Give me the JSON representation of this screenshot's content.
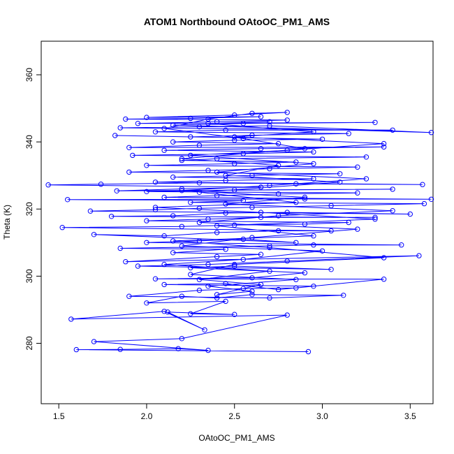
{
  "chart_data": {
    "type": "line",
    "title": "ATOM1 Northbound OAtoOC_PM1_AMS",
    "xlabel": "OAtoOC_PM1_AMS",
    "ylabel": "Theta (K)",
    "xlim": [
      1.4,
      3.63
    ],
    "ylim": [
      262,
      370
    ],
    "x_ticks": [
      1.5,
      2.0,
      2.5,
      3.0,
      3.5
    ],
    "x_tick_labels": [
      "1.5",
      "2.0",
      "2.5",
      "3.0",
      "3.5"
    ],
    "y_ticks": [
      280,
      300,
      320,
      340,
      360
    ],
    "y_tick_labels": [
      "280",
      "300",
      "320",
      "340",
      "360"
    ],
    "grid": false,
    "markers": "open-circle",
    "series": [
      {
        "color": "#0000ff",
        "points": [
          [
            2.92,
            277.5
          ],
          [
            1.6,
            278.1
          ],
          [
            1.85,
            278.2
          ],
          [
            2.18,
            278.4
          ],
          [
            2.35,
            277.9
          ],
          [
            1.7,
            280.5
          ],
          [
            2.2,
            281.4
          ],
          [
            2.8,
            288.4
          ],
          [
            1.57,
            287.2
          ],
          [
            2.1,
            289.5
          ],
          [
            2.33,
            284.0
          ],
          [
            2.12,
            289.3
          ],
          [
            2.5,
            288.6
          ],
          [
            2.25,
            288.8
          ],
          [
            2.45,
            292.5
          ],
          [
            2.0,
            292.0
          ],
          [
            2.2,
            294.0
          ],
          [
            2.4,
            293.5
          ],
          [
            2.6,
            294.5
          ],
          [
            3.12,
            294.3
          ],
          [
            2.7,
            293.5
          ],
          [
            1.9,
            294.0
          ],
          [
            2.3,
            295.8
          ],
          [
            2.55,
            296.3
          ],
          [
            2.85,
            296.5
          ],
          [
            2.95,
            297.0
          ],
          [
            2.1,
            297.5
          ],
          [
            2.45,
            297.8
          ],
          [
            2.75,
            296.0
          ],
          [
            3.35,
            299.1
          ],
          [
            2.05,
            299.2
          ],
          [
            2.6,
            299.5
          ],
          [
            2.9,
            301.0
          ],
          [
            2.25,
            302.5
          ],
          [
            2.5,
            303.0
          ],
          [
            3.05,
            302.0
          ],
          [
            1.95,
            303.0
          ],
          [
            2.35,
            303.5
          ],
          [
            2.8,
            304.5
          ],
          [
            3.55,
            306.1
          ],
          [
            1.88,
            304.3
          ],
          [
            2.4,
            305.8
          ],
          [
            2.65,
            306.5
          ],
          [
            2.15,
            307.0
          ],
          [
            2.45,
            308.0
          ],
          [
            1.85,
            308.3
          ],
          [
            2.7,
            309.0
          ],
          [
            2.95,
            309.3
          ],
          [
            3.45,
            309.3
          ],
          [
            2.0,
            310.0
          ],
          [
            2.3,
            310.5
          ],
          [
            2.55,
            311.0
          ],
          [
            2.85,
            310.0
          ],
          [
            1.7,
            312.4
          ],
          [
            2.1,
            312.0
          ],
          [
            2.4,
            313.0
          ],
          [
            2.75,
            313.5
          ],
          [
            3.05,
            313.5
          ],
          [
            1.52,
            314.5
          ],
          [
            2.2,
            314.8
          ],
          [
            2.5,
            315.2
          ],
          [
            2.9,
            315.5
          ],
          [
            3.15,
            316.0
          ],
          [
            2.0,
            316.5
          ],
          [
            2.35,
            317.0
          ],
          [
            2.65,
            317.5
          ],
          [
            3.3,
            317.5
          ],
          [
            1.8,
            317.8
          ],
          [
            2.15,
            318.0
          ],
          [
            2.45,
            318.8
          ],
          [
            2.8,
            319.0
          ],
          [
            3.5,
            318.5
          ],
          [
            1.68,
            319.4
          ],
          [
            2.05,
            319.8
          ],
          [
            2.3,
            320.2
          ],
          [
            2.6,
            320.5
          ],
          [
            3.05,
            321.0
          ],
          [
            3.58,
            321.6
          ],
          [
            2.25,
            322.0
          ],
          [
            2.55,
            322.5
          ],
          [
            1.55,
            322.8
          ],
          [
            2.9,
            323.0
          ],
          [
            3.62,
            322.9
          ],
          [
            2.1,
            323.5
          ],
          [
            2.4,
            324.0
          ],
          [
            2.75,
            324.5
          ],
          [
            3.2,
            324.8
          ],
          [
            2.0,
            325.2
          ],
          [
            2.5,
            325.7
          ],
          [
            3.4,
            325.9
          ],
          [
            1.83,
            325.4
          ],
          [
            2.2,
            326.0
          ],
          [
            2.65,
            326.5
          ],
          [
            1.44,
            327.2
          ],
          [
            1.74,
            327.4
          ],
          [
            2.3,
            327.8
          ],
          [
            2.85,
            327.5
          ],
          [
            3.57,
            327.3
          ],
          [
            2.05,
            328.0
          ],
          [
            2.45,
            328.5
          ],
          [
            2.95,
            329.0
          ],
          [
            2.15,
            329.5
          ],
          [
            2.6,
            330.0
          ],
          [
            3.1,
            330.5
          ],
          [
            1.9,
            331.0
          ],
          [
            2.35,
            331.5
          ],
          [
            2.7,
            332.0
          ],
          [
            3.2,
            332.5
          ],
          [
            2.0,
            333.0
          ],
          [
            2.5,
            333.5
          ],
          [
            2.85,
            334.0
          ],
          [
            2.2,
            334.5
          ],
          [
            2.4,
            335.0
          ],
          [
            3.25,
            335.5
          ],
          [
            1.92,
            336.0
          ],
          [
            2.55,
            336.5
          ],
          [
            2.95,
            337.0
          ],
          [
            2.1,
            337.5
          ],
          [
            2.65,
            338.0
          ],
          [
            3.35,
            338.5
          ],
          [
            1.9,
            338.3
          ],
          [
            2.3,
            339.0
          ],
          [
            2.75,
            339.5
          ],
          [
            2.15,
            340.0
          ],
          [
            2.5,
            340.5
          ],
          [
            3.0,
            340.8
          ],
          [
            1.82,
            341.9
          ],
          [
            2.25,
            341.5
          ],
          [
            2.6,
            342.0
          ],
          [
            3.15,
            342.5
          ],
          [
            2.05,
            343.0
          ],
          [
            2.45,
            343.5
          ],
          [
            3.4,
            343.5
          ],
          [
            1.85,
            344.2
          ],
          [
            2.3,
            344.5
          ],
          [
            2.7,
            344.8
          ],
          [
            3.62,
            342.8
          ],
          [
            2.15,
            345.0
          ],
          [
            2.55,
            345.5
          ],
          [
            3.3,
            345.8
          ],
          [
            1.95,
            345.5
          ],
          [
            2.4,
            346.0
          ],
          [
            2.8,
            346.5
          ],
          [
            1.88,
            346.8
          ],
          [
            2.25,
            347.0
          ],
          [
            2.65,
            347.5
          ],
          [
            2.0,
            347.3
          ],
          [
            2.5,
            348.0
          ],
          [
            2.8,
            348.8
          ],
          [
            2.6,
            348.5
          ],
          [
            2.35,
            346.8
          ],
          [
            2.1,
            344.0
          ],
          [
            2.55,
            341.0
          ],
          [
            2.9,
            338.0
          ],
          [
            2.2,
            335.0
          ],
          [
            2.75,
            333.0
          ],
          [
            2.45,
            330.0
          ],
          [
            3.1,
            328.0
          ],
          [
            2.3,
            325.0
          ],
          [
            2.85,
            322.0
          ],
          [
            2.05,
            320.5
          ],
          [
            2.65,
            319.0
          ],
          [
            3.3,
            317.0
          ],
          [
            2.4,
            315.0
          ],
          [
            2.95,
            312.0
          ],
          [
            2.15,
            310.5
          ],
          [
            2.7,
            308.5
          ],
          [
            3.35,
            305.5
          ],
          [
            2.5,
            303.5
          ],
          [
            2.25,
            300.5
          ],
          [
            2.85,
            299.0
          ],
          [
            2.35,
            297.0
          ],
          [
            2.6,
            295.5
          ],
          [
            2.4,
            294.5
          ],
          [
            2.65,
            297.5
          ],
          [
            2.3,
            299.0
          ],
          [
            2.7,
            301.5
          ],
          [
            2.1,
            303.5
          ],
          [
            2.55,
            305.0
          ],
          [
            3.0,
            307.5
          ],
          [
            2.2,
            309.0
          ],
          [
            2.6,
            311.5
          ],
          [
            3.2,
            314.0
          ],
          [
            2.3,
            316.0
          ],
          [
            2.75,
            318.0
          ],
          [
            3.4,
            319.5
          ],
          [
            2.45,
            321.5
          ],
          [
            2.9,
            323.5
          ],
          [
            2.2,
            325.5
          ],
          [
            2.7,
            327.0
          ],
          [
            3.25,
            329.0
          ],
          [
            2.4,
            331.0
          ],
          [
            2.95,
            333.5
          ],
          [
            2.25,
            336.0
          ],
          [
            2.8,
            337.5
          ],
          [
            3.35,
            339.5
          ],
          [
            2.5,
            341.5
          ],
          [
            2.95,
            343.0
          ],
          [
            2.35,
            345.5
          ],
          [
            2.7,
            346.0
          ]
        ]
      }
    ]
  }
}
